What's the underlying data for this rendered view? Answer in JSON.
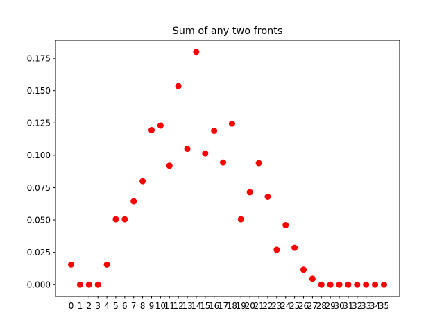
{
  "chart_data": {
    "type": "scatter",
    "title": "Sum of any two fronts",
    "xlabel": "",
    "ylabel": "",
    "x": [
      0,
      1,
      2,
      3,
      4,
      5,
      6,
      7,
      8,
      9,
      10,
      11,
      12,
      13,
      14,
      15,
      16,
      17,
      18,
      19,
      20,
      21,
      22,
      23,
      24,
      25,
      26,
      27,
      28,
      29,
      30,
      31,
      32,
      33,
      34,
      35
    ],
    "y": [
      0.0155,
      0,
      0,
      0,
      0.0155,
      0.0505,
      0.0505,
      0.0645,
      0.08,
      0.1195,
      0.123,
      0.092,
      0.1535,
      0.105,
      0.18,
      0.1015,
      0.119,
      0.0945,
      0.1245,
      0.0505,
      0.0715,
      0.094,
      0.068,
      0.027,
      0.046,
      0.0285,
      0.0115,
      0.0045,
      0,
      0,
      0,
      0,
      0,
      0,
      0,
      0
    ],
    "xlim": [
      -1.75,
      36.75
    ],
    "ylim": [
      -0.009,
      0.189
    ],
    "yticks": [
      0.0,
      0.025,
      0.05,
      0.075,
      0.1,
      0.125,
      0.15,
      0.175
    ],
    "ytick_labels": [
      "0.000",
      "0.025",
      "0.050",
      "0.075",
      "0.100",
      "0.125",
      "0.150",
      "0.175"
    ],
    "marker_color": "#ff0000",
    "grid": false,
    "legend": "none"
  }
}
